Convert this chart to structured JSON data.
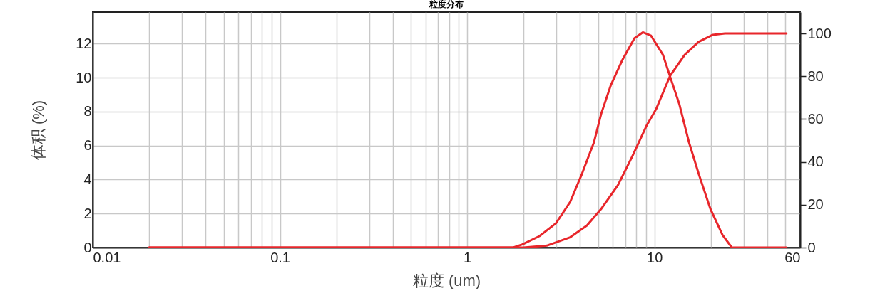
{
  "chart_data": {
    "type": "line",
    "title": "粒度分布",
    "xlabel": "粒度 (um)",
    "ylabel": "体积 (%)",
    "log": "x",
    "grid": true,
    "line_style": "solid",
    "marker": "none",
    "xlim": [
      0.01,
      60
    ],
    "xticks": [
      0.01,
      {
        "value": 0.02,
        "label": null
      },
      {
        "value": 0.03,
        "label": null
      },
      {
        "value": 0.04,
        "label": null
      },
      {
        "value": 0.05,
        "label": null
      },
      {
        "value": 0.06,
        "label": null
      },
      {
        "value": 0.07,
        "label": null
      },
      {
        "value": 0.08,
        "label": null
      },
      {
        "value": 0.09,
        "label": null
      },
      0.1,
      {
        "value": 0.2,
        "label": null
      },
      {
        "value": 0.3,
        "label": null
      },
      {
        "value": 0.4,
        "label": null
      },
      {
        "value": 0.5,
        "label": null
      },
      {
        "value": 0.6,
        "label": null
      },
      {
        "value": 0.7,
        "label": null
      },
      {
        "value": 0.8,
        "label": null
      },
      {
        "value": 0.9,
        "label": null
      },
      1,
      {
        "value": 2,
        "label": null
      },
      {
        "value": 3,
        "label": null
      },
      {
        "value": 4,
        "label": null
      },
      {
        "value": 5,
        "label": null
      },
      {
        "value": 6,
        "label": null
      },
      {
        "value": 7,
        "label": null
      },
      {
        "value": 8,
        "label": null
      },
      {
        "value": 9,
        "label": null
      },
      10,
      {
        "value": 20,
        "label": null
      },
      {
        "value": 30,
        "label": null
      },
      {
        "value": 40,
        "label": null
      },
      {
        "value": 50,
        "label": null
      },
      60
    ],
    "ylim": [
      0,
      13.85
    ],
    "yticks": [
      0,
      2,
      4,
      6,
      8,
      10,
      12
    ],
    "y2lim": [
      0,
      110
    ],
    "y2ticks": [
      0,
      20,
      40,
      60,
      80,
      100
    ],
    "series": [
      {
        "color": "#e8262b",
        "x": [
          0.02,
          1.76,
          1.97,
          2.43,
          2.98,
          3.55,
          4.11,
          4.75,
          5.19,
          5.84,
          6.76,
          7.82,
          8.67,
          9.59,
          11.1,
          12.1,
          13.6,
          15.3,
          17.2,
          19.9,
          23.1,
          25.9,
          50.7
        ],
        "values": [
          0,
          0,
          0.18,
          0.67,
          1.43,
          2.69,
          4.36,
          6.18,
          7.85,
          9.53,
          11.06,
          12.31,
          12.66,
          12.46,
          11.34,
          10.08,
          8.41,
          6.18,
          4.36,
          2.27,
          0.74,
          0,
          0
        ]
      },
      {
        "color": "#e8262b",
        "axis": "y2",
        "x": [
          0.02,
          2.0,
          2.66,
          3.55,
          4.36,
          5.19,
          6.38,
          7.6,
          9.06,
          10.2,
          12.1,
          14.5,
          17.2,
          20.5,
          23.8,
          50.7
        ],
        "values": [
          0,
          0,
          0.9,
          4.8,
          10.3,
          18.0,
          29.1,
          42.4,
          56.8,
          64.6,
          80.1,
          90.0,
          96.1,
          99.4,
          100,
          100
        ]
      }
    ]
  }
}
